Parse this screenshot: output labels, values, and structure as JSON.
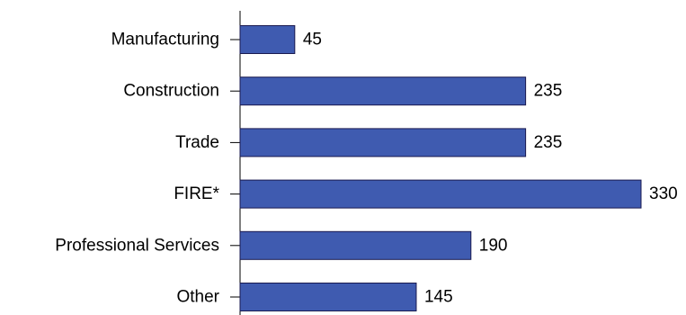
{
  "chart_data": {
    "type": "bar",
    "orientation": "horizontal",
    "categories": [
      "Manufacturing",
      "Construction",
      "Trade",
      "FIRE*",
      "Professional Services",
      "Other"
    ],
    "values": [
      45,
      235,
      235,
      330,
      190,
      145
    ],
    "data_labels": [
      "45",
      "235",
      "235",
      "330",
      "190",
      "145"
    ],
    "title": "",
    "xlabel": "",
    "ylabel": "",
    "xlim": [
      0,
      400
    ],
    "grid": false,
    "legend": "none",
    "bar_color": "#3F5BB0",
    "bar_edge_color": "#1A1A50"
  }
}
